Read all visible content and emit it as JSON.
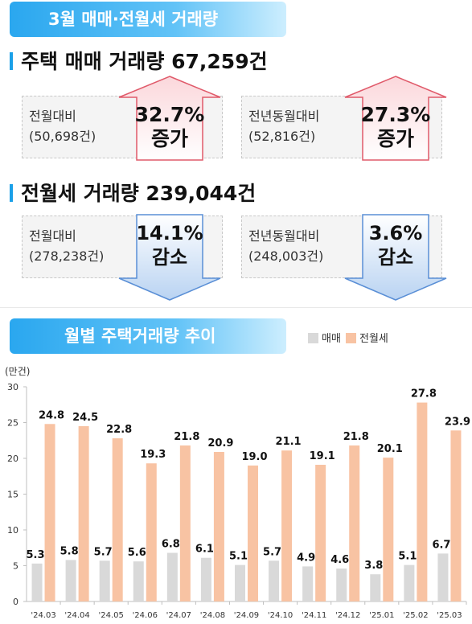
{
  "title": "3월 매매·전월세 거래량",
  "sale": {
    "heading": "주택 매매 거래량 67,259건",
    "compare_prev_month": {
      "label": "전월대비",
      "base": "(50,698건)",
      "rate": "32.7%",
      "direction": "증가"
    },
    "compare_prev_year": {
      "label": "전년동월대비",
      "base": "(52,816건)",
      "rate": "27.3%",
      "direction": "증가"
    }
  },
  "rent": {
    "heading": "전월세 거래량 239,044건",
    "compare_prev_month": {
      "label": "전월대비",
      "base": "(278,238건)",
      "rate": "14.1%",
      "direction": "감소"
    },
    "compare_prev_year": {
      "label": "전년동월대비",
      "base": "(248,003건)",
      "rate": "3.6%",
      "direction": "감소"
    }
  },
  "chart_title": "월별 주택거래량 추이",
  "colors": {
    "banner": "#2aa7ef",
    "up_arrow": "#e05a6a",
    "down_arrow": "#5a8fd6",
    "sale_bar": "#d9d9d9",
    "rent_bar": "#f8c3a3"
  },
  "chart_data": {
    "type": "bar",
    "ylabel": "(만건)",
    "ylim": [
      0,
      30
    ],
    "yticks": [
      0,
      5,
      10,
      15,
      20,
      25,
      30
    ],
    "grid": false,
    "legend_position": "top-right",
    "categories": [
      "'24.03",
      "'24.04",
      "'24.05",
      "'24.06",
      "'24.07",
      "'24.08",
      "'24.09",
      "'24.10",
      "'24.11",
      "'24.12",
      "'25.01",
      "'25.02",
      "'25.03"
    ],
    "series": [
      {
        "name": "매매",
        "values": [
          5.3,
          5.8,
          5.7,
          5.6,
          6.8,
          6.1,
          5.1,
          5.7,
          4.9,
          4.6,
          3.8,
          5.1,
          6.7
        ]
      },
      {
        "name": "전월세",
        "values": [
          24.8,
          24.5,
          22.8,
          19.3,
          21.8,
          20.9,
          19.0,
          21.1,
          19.1,
          21.8,
          20.1,
          27.8,
          23.9
        ]
      }
    ]
  }
}
